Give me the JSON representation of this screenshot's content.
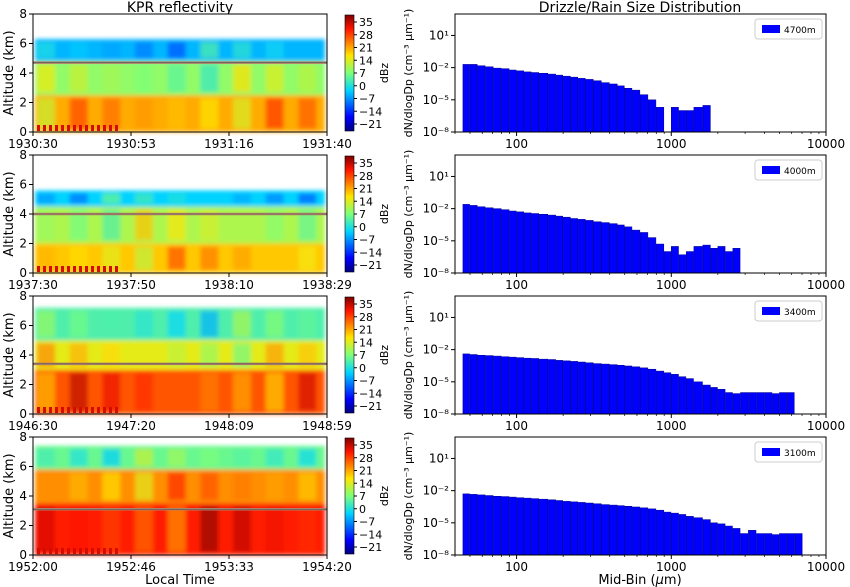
{
  "left_title": "KPR reflectivity",
  "right_title": "Drizzle/Rain Size Distribution",
  "left_xlabel": "Local Time",
  "right_xlabel": "Mid-Bin (μm)",
  "colors": {
    "bar": "#0000ff",
    "bar_edge": "#00008b",
    "cloud_line": "#b0806a"
  },
  "colorbar": {
    "label": "dBz",
    "ticks": [
      "35",
      "28",
      "21",
      "14",
      "7",
      "0",
      "−7",
      "−14",
      "−21"
    ]
  },
  "chart_data": [
    {
      "type": "heatmap",
      "panel": "reflectivity-1",
      "title": "KPR reflectivity",
      "ylabel": "Altitude (km)",
      "y_ticks": [
        "0",
        "2",
        "4",
        "6",
        "8"
      ],
      "x_ticks": [
        "1930:30",
        "1930:53",
        "1931:16",
        "1931:40"
      ],
      "ylim": [
        0,
        8
      ],
      "zlim": [
        -25,
        38
      ],
      "aircraft_altitude_km": 4.7,
      "layers": [
        {
          "from_km": 0.0,
          "to_km": 2.5,
          "dbz": 20
        },
        {
          "from_km": 2.5,
          "to_km": 4.8,
          "dbz": 8
        },
        {
          "from_km": 4.8,
          "to_km": 6.3,
          "dbz": -5
        }
      ]
    },
    {
      "type": "heatmap",
      "panel": "reflectivity-2",
      "ylabel": "Altitude (km)",
      "y_ticks": [
        "0",
        "2",
        "4",
        "6",
        "8"
      ],
      "x_ticks": [
        "1937:30",
        "1937:50",
        "1938:10",
        "1938:29"
      ],
      "ylim": [
        0,
        8
      ],
      "zlim": [
        -25,
        38
      ],
      "aircraft_altitude_km": 4.0,
      "layers": [
        {
          "from_km": 0.0,
          "to_km": 2.0,
          "dbz": 18
        },
        {
          "from_km": 2.0,
          "to_km": 4.5,
          "dbz": 10
        },
        {
          "from_km": 4.5,
          "to_km": 5.6,
          "dbz": -3
        }
      ]
    },
    {
      "type": "heatmap",
      "panel": "reflectivity-3",
      "ylabel": "Altitude (km)",
      "y_ticks": [
        "0",
        "2",
        "4",
        "6",
        "8"
      ],
      "x_ticks": [
        "1946:30",
        "1947:20",
        "1948:09",
        "1948:59"
      ],
      "ylim": [
        0,
        8
      ],
      "zlim": [
        -25,
        38
      ],
      "aircraft_altitude_km": 3.4,
      "layers": [
        {
          "from_km": 0.0,
          "to_km": 3.0,
          "dbz": 26
        },
        {
          "from_km": 3.0,
          "to_km": 5.0,
          "dbz": 14
        },
        {
          "from_km": 5.0,
          "to_km": 7.2,
          "dbz": 3
        }
      ]
    },
    {
      "type": "heatmap",
      "panel": "reflectivity-4",
      "ylabel": "Altitude (km)",
      "y_ticks": [
        "0",
        "2",
        "4",
        "6",
        "8"
      ],
      "x_ticks": [
        "1952:00",
        "1952:46",
        "1953:33",
        "1954:20"
      ],
      "xlabel": "Local Time",
      "ylim": [
        0,
        8
      ],
      "zlim": [
        -25,
        38
      ],
      "aircraft_altitude_km": 3.1,
      "layers": [
        {
          "from_km": 0.0,
          "to_km": 3.5,
          "dbz": 30
        },
        {
          "from_km": 3.5,
          "to_km": 5.8,
          "dbz": 22
        },
        {
          "from_km": 5.8,
          "to_km": 7.4,
          "dbz": 5
        }
      ]
    },
    {
      "type": "bar",
      "panel": "dsd-1",
      "title": "Drizzle/Rain Size Distribution",
      "legend": "4700m",
      "legend_position": "upper right",
      "ylabel": "dN/dlogDp (cm⁻³ μm⁻¹)",
      "x_ticks": [
        "100",
        "1000",
        "10000"
      ],
      "y_ticks": [
        "10¹",
        "10⁻²",
        "10⁻⁵",
        "10⁻⁸"
      ],
      "xscale": "log",
      "yscale": "log",
      "xlim": [
        40,
        10000
      ],
      "ylim": [
        1e-08,
        1000
      ],
      "x": [
        45,
        50,
        56,
        63,
        71,
        80,
        90,
        100,
        112,
        125,
        140,
        160,
        180,
        200,
        224,
        250,
        280,
        315,
        355,
        400,
        450,
        500,
        560,
        630,
        710,
        800,
        900,
        1000,
        1120,
        1250,
        1400,
        1600,
        1800
      ],
      "y": [
        0.02,
        0.02,
        0.015,
        0.012,
        0.009,
        0.008,
        0.006,
        0.005,
        0.004,
        0.0035,
        0.003,
        0.0025,
        0.002,
        0.0016,
        0.0013,
        0.001,
        0.0008,
        0.0006,
        0.0004,
        0.0003,
        0.0002,
        0.00012,
        8e-05,
        3e-05,
        1e-05,
        2e-06,
        0,
        2e-06,
        1e-06,
        1e-06,
        2e-06,
        3e-06,
        0
      ]
    },
    {
      "type": "bar",
      "panel": "dsd-2",
      "legend": "4000m",
      "legend_position": "upper right",
      "ylabel": "dN/dlogDp (cm⁻³ μm⁻¹)",
      "x_ticks": [
        "100",
        "1000",
        "10000"
      ],
      "y_ticks": [
        "10¹",
        "10⁻²",
        "10⁻⁵",
        "10⁻⁸"
      ],
      "xscale": "log",
      "yscale": "log",
      "xlim": [
        40,
        10000
      ],
      "ylim": [
        1e-08,
        1000
      ],
      "x": [
        45,
        50,
        56,
        63,
        71,
        80,
        90,
        100,
        112,
        125,
        140,
        160,
        180,
        200,
        224,
        250,
        280,
        315,
        355,
        400,
        450,
        500,
        560,
        630,
        710,
        800,
        900,
        1000,
        1120,
        1250,
        1400,
        1600,
        1800,
        2000,
        2240,
        2500
      ],
      "y": [
        0.025,
        0.02,
        0.015,
        0.012,
        0.01,
        0.008,
        0.006,
        0.005,
        0.004,
        0.0035,
        0.003,
        0.0025,
        0.002,
        0.0016,
        0.0012,
        0.001,
        0.0008,
        0.0006,
        0.0005,
        0.0004,
        0.0003,
        0.0002,
        0.0001,
        6e-05,
        2e-05,
        5e-06,
        1e-06,
        3e-06,
        5e-07,
        1e-06,
        3e-06,
        4e-06,
        2e-06,
        3e-06,
        1e-06,
        2e-06
      ]
    },
    {
      "type": "bar",
      "panel": "dsd-3",
      "legend": "3400m",
      "legend_position": "upper right",
      "ylabel": "dN/dlogDp (cm⁻³ μm⁻¹)",
      "x_ticks": [
        "100",
        "1000",
        "10000"
      ],
      "y_ticks": [
        "10¹",
        "10⁻²",
        "10⁻⁵",
        "10⁻⁸"
      ],
      "xscale": "log",
      "yscale": "log",
      "xlim": [
        40,
        10000
      ],
      "ylim": [
        1e-08,
        1000
      ],
      "x": [
        45,
        50,
        56,
        63,
        71,
        80,
        90,
        100,
        112,
        125,
        140,
        160,
        180,
        200,
        224,
        250,
        280,
        315,
        355,
        400,
        450,
        500,
        560,
        630,
        710,
        800,
        900,
        1000,
        1120,
        1250,
        1400,
        1600,
        1800,
        2000,
        2240,
        2500,
        2800,
        3150,
        3550,
        4000,
        4500,
        5000,
        5600
      ],
      "y": [
        0.004,
        0.0035,
        0.003,
        0.0028,
        0.0025,
        0.0022,
        0.002,
        0.0018,
        0.0016,
        0.0015,
        0.0013,
        0.0012,
        0.001,
        0.0009,
        0.0008,
        0.0007,
        0.0006,
        0.0005,
        0.00045,
        0.0004,
        0.00035,
        0.0003,
        0.00025,
        0.0002,
        0.00015,
        0.0001,
        7e-05,
        5e-05,
        3e-05,
        2e-05,
        1e-05,
        5e-06,
        3e-06,
        2e-06,
        1e-06,
        8e-07,
        1e-06,
        1e-06,
        1e-06,
        1e-06,
        8e-07,
        1e-06,
        1e-06
      ]
    },
    {
      "type": "bar",
      "panel": "dsd-4",
      "legend": "3100m",
      "legend_position": "upper right",
      "ylabel": "dN/dlogDp (cm⁻³ μm⁻¹)",
      "x_ticks": [
        "100",
        "1000",
        "10000"
      ],
      "y_ticks": [
        "10¹",
        "10⁻²",
        "10⁻⁵",
        "10⁻⁸"
      ],
      "xlabel": "Mid-Bin (μm)",
      "xscale": "log",
      "yscale": "log",
      "xlim": [
        40,
        10000
      ],
      "ylim": [
        1e-08,
        1000
      ],
      "x": [
        45,
        50,
        56,
        63,
        71,
        80,
        90,
        100,
        112,
        125,
        140,
        160,
        180,
        200,
        224,
        250,
        280,
        315,
        355,
        400,
        450,
        500,
        560,
        630,
        710,
        800,
        900,
        1000,
        1120,
        1250,
        1400,
        1600,
        1800,
        2000,
        2240,
        2500,
        2800,
        3150,
        3550,
        4000,
        4500,
        5000,
        5600,
        6300
      ],
      "y": [
        0.005,
        0.0045,
        0.004,
        0.0035,
        0.003,
        0.0028,
        0.0025,
        0.0022,
        0.002,
        0.0018,
        0.0016,
        0.0014,
        0.0012,
        0.001,
        0.0009,
        0.0008,
        0.0007,
        0.0006,
        0.0005,
        0.00045,
        0.0004,
        0.00035,
        0.0003,
        0.00025,
        0.0002,
        0.00015,
        0.0001,
        8e-05,
        6e-05,
        4e-05,
        3e-05,
        2e-05,
        1e-05,
        8e-06,
        5e-06,
        3e-06,
        1e-06,
        2e-06,
        1e-06,
        1e-06,
        8e-07,
        1e-06,
        1e-06,
        1e-06
      ]
    }
  ]
}
